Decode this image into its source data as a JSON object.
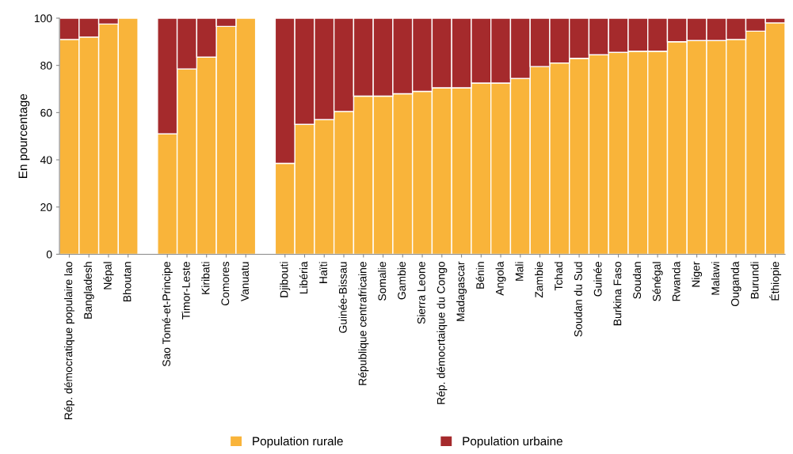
{
  "chart_data": {
    "type": "bar",
    "stacked": true,
    "ylabel": "En pourcentage",
    "ylim": [
      0,
      100
    ],
    "yticks": [
      0,
      20,
      40,
      60,
      80,
      100
    ],
    "grid": false,
    "legend": "bottom",
    "categories": [
      "Rép. démocratique populaire lao",
      "Bangladesh",
      "Népal",
      "Bhoutan",
      null,
      "Sao Tomé-et-Principe",
      "Timor-Leste",
      "Kiribati",
      "Comores",
      "Vanuatu",
      null,
      "Djibouti",
      "Libéria",
      "Haïti",
      "Guinée-Bissau",
      "République centrafricaine",
      "Somalie",
      "Gambie",
      "Sierra Leone",
      "Rép. démocrtaique du Congo",
      "Madagascar",
      "Bénin",
      "Angola",
      "Mali",
      "Zambie",
      "Tchad",
      "Soudan du Sud",
      "Guinée",
      "Burkina Faso",
      "Soudan",
      "Sénégal",
      "Rwanda",
      "Niger",
      "Malawi",
      "Ouganda",
      "Burundi",
      "Éthiopie"
    ],
    "series": [
      {
        "name": "Population rurale",
        "color": "#f9b43a",
        "values": [
          91,
          92,
          97.5,
          100,
          null,
          51,
          78.5,
          83.5,
          96.5,
          100,
          null,
          38.5,
          55,
          57,
          60.5,
          67,
          67,
          68,
          69,
          70.5,
          70.5,
          72.5,
          72.5,
          74.5,
          79.5,
          81,
          83,
          84.5,
          85.5,
          86,
          86,
          90,
          90.5,
          90.5,
          91,
          94.5,
          98
        ]
      },
      {
        "name": "Population urbaine",
        "color": "#a52a2c",
        "values": [
          9,
          8,
          2.5,
          null,
          null,
          49,
          21.5,
          16.5,
          3.5,
          null,
          null,
          61.5,
          45,
          43,
          39.5,
          33,
          33,
          32,
          31,
          29.5,
          29.5,
          27.5,
          27.5,
          25.5,
          20.5,
          19,
          17,
          15.5,
          14.5,
          14,
          14,
          10,
          9.5,
          9.5,
          9,
          5.5,
          2
        ]
      }
    ]
  }
}
